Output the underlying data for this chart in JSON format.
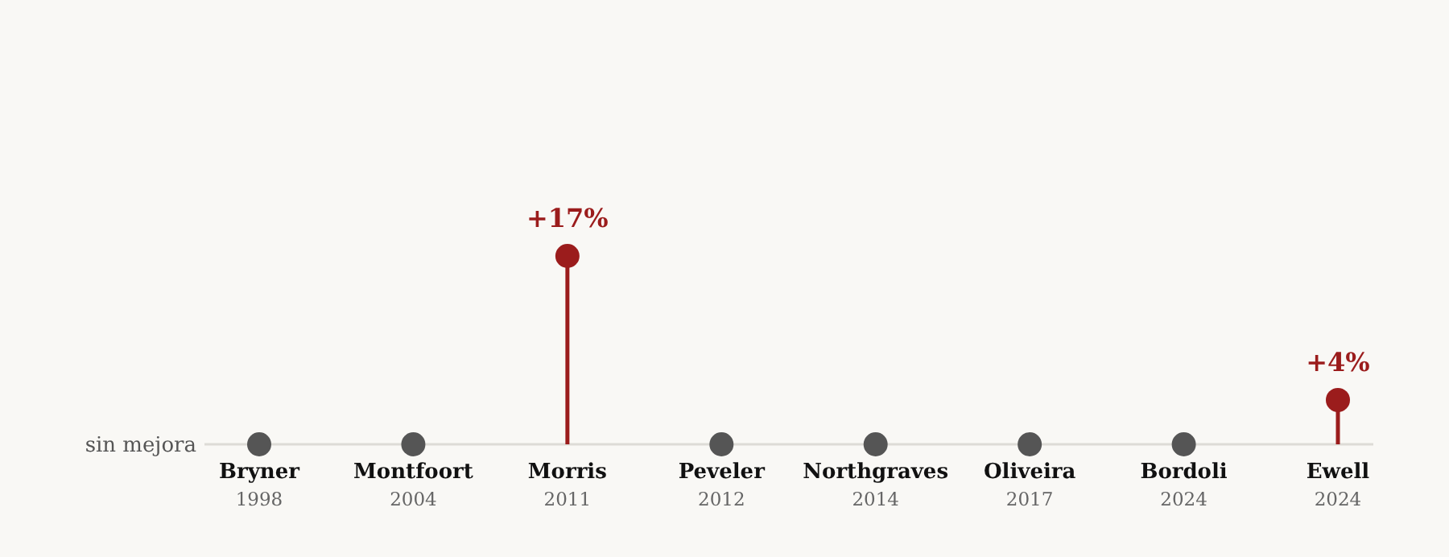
{
  "chart_data": {
    "type": "lollipop",
    "categories": [
      "Bryner\n1998",
      "Montfoort\n2004",
      "Morris\n2011",
      "Peveler\n2012",
      "Northgraves\n2014",
      "Oliveira\n2017",
      "Bordoli\n2024",
      "Ewell\n2024"
    ],
    "values": [
      0,
      0,
      17,
      0,
      0,
      0,
      0,
      4
    ],
    "colors": [
      "#555555",
      "#555555",
      "#9b1c1c",
      "#555555",
      "#555555",
      "#555555",
      "#555555",
      "#9b1c1c"
    ],
    "value_labels": [
      null,
      null,
      "+17%",
      null,
      null,
      null,
      null,
      "+4%"
    ],
    "annotations": [
      "sin mejora"
    ]
  }
}
